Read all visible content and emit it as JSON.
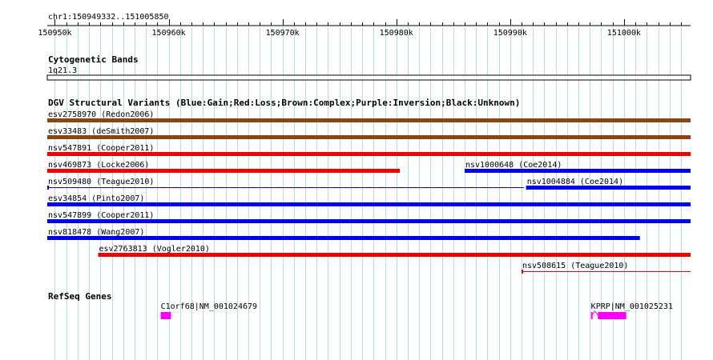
{
  "ruler": {
    "region_label": "chr1:150949332..151005850",
    "ticks": [
      "150950k",
      "150960k",
      "150970k",
      "150980k",
      "150990k",
      "151000k"
    ],
    "tick_values_kb": [
      150950,
      150960,
      150970,
      150980,
      150990,
      151000
    ],
    "range_bp": [
      150949332,
      151005850
    ]
  },
  "cyto": {
    "title": "Cytogenetic Bands",
    "band": "1q21.3"
  },
  "dgv": {
    "title": "DGV Structural Variants (Blue:Gain;Red:Loss;Brown:Complex;Purple:Inversion;Black:Unknown)",
    "colors": {
      "gain": "#0000ee",
      "loss": "#ee0000",
      "complex": "#8b4513",
      "inversion": "#800080",
      "unknown": "#000000"
    },
    "variants": [
      {
        "label": "esv2758970 (Redon2006)",
        "type": "complex",
        "start_kb": 150949.3,
        "end_kb": 151005.85,
        "row": 0
      },
      {
        "label": "esv33483 (deSmith2007)",
        "type": "complex",
        "start_kb": 150949.3,
        "end_kb": 151005.85,
        "row": 1
      },
      {
        "label": "nsv547891 (Cooper2011)",
        "type": "loss",
        "start_kb": 150949.3,
        "end_kb": 151005.85,
        "row": 2
      },
      {
        "label": "nsv469873 (Locke2006)",
        "type": "loss",
        "start_kb": 150949.3,
        "end_kb": 150980.3,
        "row": 3
      },
      {
        "label": "nsv1000648 (Coe2014)",
        "type": "gain",
        "start_kb": 150986.0,
        "end_kb": 151005.85,
        "row": 3
      },
      {
        "label": "nsv509480 (Teague2010)",
        "type": "gain",
        "start_kb": 150949.3,
        "end_kb": 150991.2,
        "row": 4,
        "thin": true
      },
      {
        "label": "nsv1004884 (Coe2014)",
        "type": "gain",
        "start_kb": 150991.4,
        "end_kb": 151005.85,
        "row": 4
      },
      {
        "label": "esv34854 (Pinto2007)",
        "type": "gain",
        "start_kb": 150949.3,
        "end_kb": 151005.85,
        "row": 5
      },
      {
        "label": "nsv547899 (Cooper2011)",
        "type": "gain",
        "start_kb": 150949.3,
        "end_kb": 151005.85,
        "row": 6
      },
      {
        "label": "nsv818478 (Wang2007)",
        "type": "gain",
        "start_kb": 150949.3,
        "end_kb": 151001.4,
        "row": 7
      },
      {
        "label": "esv2763813 (Vogler2010)",
        "type": "loss",
        "start_kb": 150953.8,
        "end_kb": 151005.85,
        "row": 8
      },
      {
        "label": "nsv508615 (Teague2010)",
        "type": "loss",
        "start_kb": 150991.0,
        "end_kb": 151005.85,
        "row": 9,
        "thin": true
      }
    ]
  },
  "refseq": {
    "title": "RefSeq Genes",
    "color": "#ff00ff",
    "genes": [
      {
        "label": "C1orf68|NM_001024679",
        "start_kb": 150959.3,
        "end_kb": 150960.2,
        "introns": []
      },
      {
        "label": "KPRP|NM_001025231",
        "start_kb": 150997.1,
        "end_kb": 151000.2,
        "exons": [
          [
            150997.1,
            150997.2
          ],
          [
            150997.7,
            151000.2
          ]
        ]
      }
    ]
  }
}
